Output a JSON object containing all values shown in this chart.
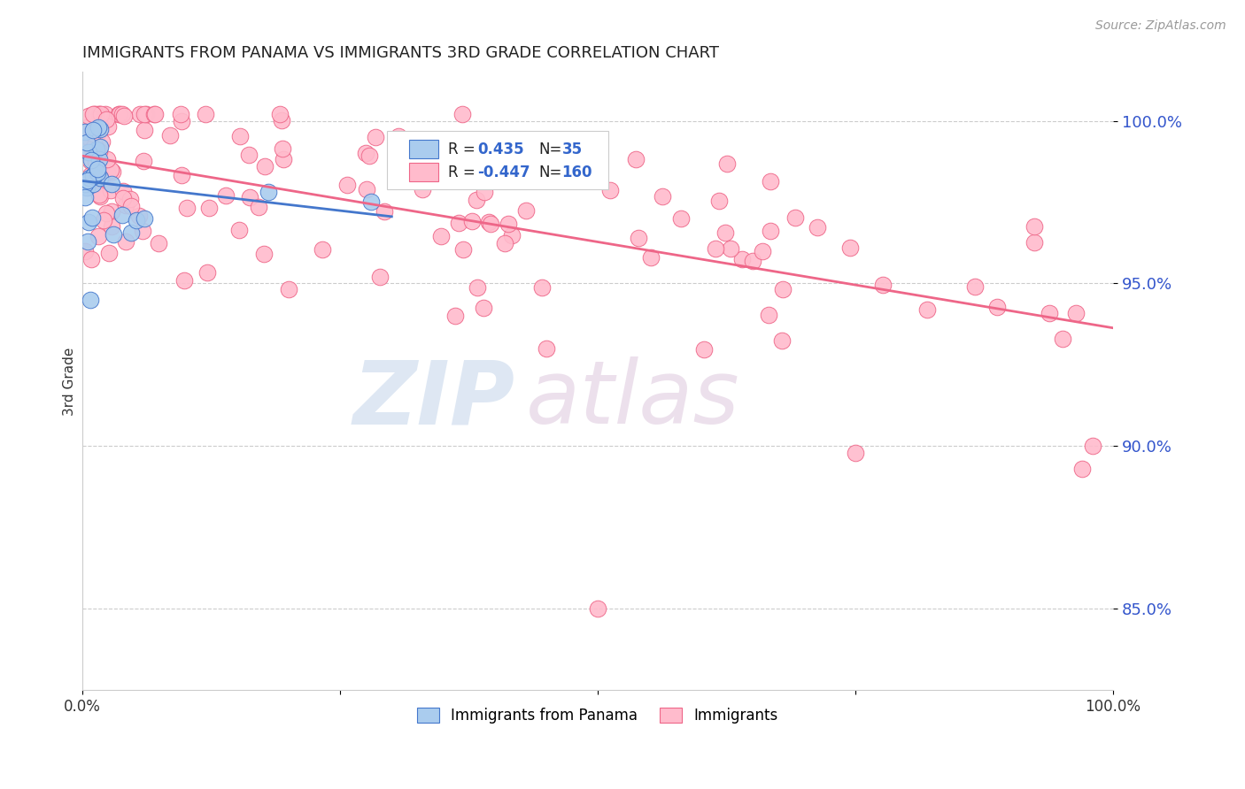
{
  "title": "IMMIGRANTS FROM PANAMA VS IMMIGRANTS 3RD GRADE CORRELATION CHART",
  "source": "Source: ZipAtlas.com",
  "ylabel": "3rd Grade",
  "legend_blue_label": "Immigrants from Panama",
  "legend_pink_label": "Immigrants",
  "blue_R": 0.435,
  "blue_N": 35,
  "pink_R": -0.447,
  "pink_N": 160,
  "blue_color": "#aaccee",
  "pink_color": "#ffbbcc",
  "blue_line_color": "#4477cc",
  "pink_line_color": "#ee6688",
  "xlim": [
    0.0,
    1.0
  ],
  "ylim": [
    0.825,
    1.015
  ],
  "y_tick_vals": [
    0.85,
    0.9,
    0.95,
    1.0
  ],
  "y_tick_labels": [
    "85.0%",
    "90.0%",
    "95.0%",
    "100.0%"
  ],
  "blue_seed": 12,
  "pink_seed": 7
}
